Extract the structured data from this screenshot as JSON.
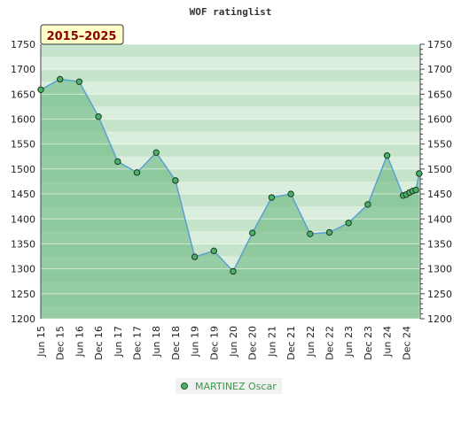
{
  "chart_data": {
    "type": "area",
    "title": "WOF ratinglist",
    "date_range_label": "2015–2025",
    "ylim": [
      1200,
      1750
    ],
    "y_ticks": [
      1200,
      1250,
      1300,
      1350,
      1400,
      1450,
      1500,
      1550,
      1600,
      1650,
      1700,
      1750
    ],
    "x_tick_labels": [
      "Jun 15",
      "Dec 15",
      "Jun 16",
      "Dec 16",
      "Jun 17",
      "Dec 17",
      "Jun 18",
      "Dec 18",
      "Jun 19",
      "Dec 19",
      "Jun 20",
      "Dec 20",
      "Jun 21",
      "Dec 21",
      "Jun 22",
      "Dec 22",
      "Jun 23",
      "Dec 23",
      "Jun 24",
      "Dec 24"
    ],
    "legend_position": "bottom-center",
    "series": [
      {
        "name": "MARTINEZ Oscar",
        "color": "#5aa0d0",
        "marker_color": "#4caf6a",
        "x": [
          "2015-06",
          "2015-12",
          "2016-06",
          "2016-12",
          "2017-06",
          "2017-12",
          "2018-06",
          "2018-12",
          "2019-06",
          "2019-12",
          "2020-06",
          "2020-12",
          "2021-06",
          "2021-12",
          "2022-06",
          "2022-12",
          "2023-06",
          "2023-12",
          "2024-06",
          "2024-11",
          "2024-12",
          "2025-01",
          "2025-02",
          "2025-03",
          "2025-04"
        ],
        "values": [
          1659,
          1680,
          1675,
          1605,
          1515,
          1493,
          1533,
          1477,
          1324,
          1336,
          1295,
          1372,
          1443,
          1450,
          1370,
          1373,
          1392,
          1429,
          1527,
          1447,
          1449,
          1453,
          1456,
          1458,
          1491
        ]
      }
    ]
  }
}
